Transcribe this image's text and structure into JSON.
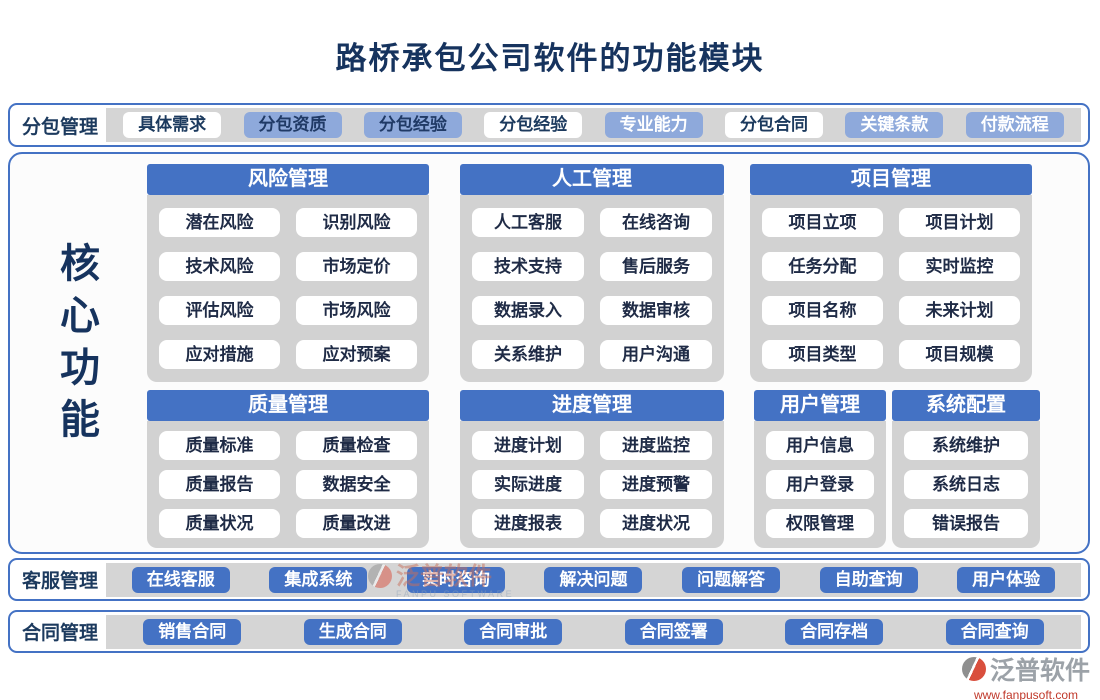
{
  "title": "路桥承包公司软件的功能模块",
  "colors": {
    "header_blue": "#4472C4",
    "light_blue": "#8EA9DB",
    "strip_gray": "#D5D5D5",
    "navy_text": "#1C3A5E",
    "brand_red": "#C0392B",
    "brand_gray": "#9CA2A8"
  },
  "top_bar": {
    "label": "分包管理",
    "buttons": [
      {
        "label": "具体需求"
      },
      {
        "label": "分包资质"
      },
      {
        "label": "分包经验"
      },
      {
        "label": "分包经验"
      },
      {
        "label": "专业能力"
      },
      {
        "label": "分包合同"
      },
      {
        "label": "关键条款"
      },
      {
        "label": "付款流程"
      }
    ]
  },
  "core": {
    "label": "核心功能"
  },
  "sections": [
    {
      "title": "风险管理",
      "items": [
        "潜在风险",
        "识别风险",
        "技术风险",
        "市场定价",
        "评估风险",
        "市场风险",
        "应对措施",
        "应对预案"
      ]
    },
    {
      "title": "人工管理",
      "items": [
        "人工客服",
        "在线咨询",
        "技术支持",
        "售后服务",
        "数据录入",
        "数据审核",
        "关系维护",
        "用户沟通"
      ]
    },
    {
      "title": "项目管理",
      "items": [
        "项目立项",
        "项目计划",
        "任务分配",
        "实时监控",
        "项目名称",
        "未来计划",
        "项目类型",
        "项目规模"
      ]
    },
    {
      "title": "质量管理",
      "items": [
        "质量标准",
        "质量检查",
        "质量报告",
        "数据安全",
        "质量状况",
        "质量改进"
      ]
    },
    {
      "title": "进度管理",
      "items": [
        "进度计划",
        "进度监控",
        "实际进度",
        "进度预警",
        "进度报表",
        "进度状况"
      ]
    },
    {
      "title": "用户管理",
      "items": [
        "用户信息",
        "用户登录",
        "权限管理"
      ]
    },
    {
      "title": "系统配置",
      "items": [
        "系统维护",
        "系统日志",
        "错误报告"
      ]
    }
  ],
  "service_bar": {
    "label": "客服管理",
    "buttons": [
      {
        "label": "在线客服"
      },
      {
        "label": "集成系统"
      },
      {
        "label": "实时咨询"
      },
      {
        "label": "解决问题"
      },
      {
        "label": "问题解答"
      },
      {
        "label": "自助查询"
      },
      {
        "label": "用户体验"
      }
    ]
  },
  "contract_bar": {
    "label": "合同管理",
    "buttons": [
      {
        "label": "销售合同"
      },
      {
        "label": "生成合同"
      },
      {
        "label": "合同审批"
      },
      {
        "label": "合同签署"
      },
      {
        "label": "合同存档"
      },
      {
        "label": "合同查询"
      }
    ]
  },
  "watermark": {
    "brand": "泛普软件",
    "subtitle": "FANPU SOFTWARE"
  },
  "footer_logo": {
    "brand": "泛普软件",
    "website": "www.fanpusoft.com"
  }
}
